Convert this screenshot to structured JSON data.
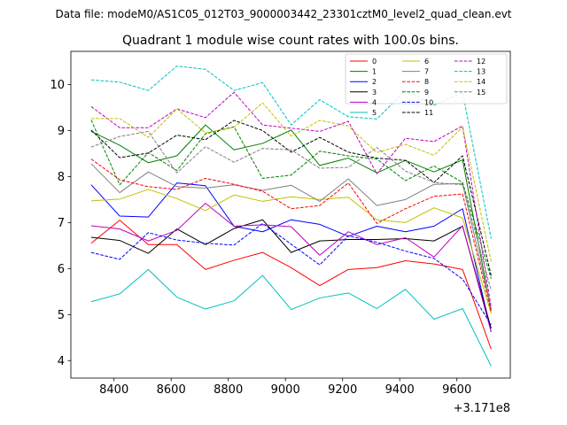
{
  "chart_data": {
    "type": "line",
    "suptitle": "Data file: modeM0/AS1C05_012T03_9000003442_23301cztM0_level2_quad_clean.evt",
    "title": "Quadrant 1 module wise count rates with 100.0s bins.",
    "xlabel": "",
    "ylabel": "",
    "x_offset_label": "+3.171e8",
    "x": [
      8320,
      8420,
      8520,
      8620,
      8720,
      8820,
      8920,
      9020,
      9120,
      9220,
      9320,
      9420,
      9520,
      9620,
      9720
    ],
    "xlim": [
      8249,
      9787
    ],
    "ylim": [
      3.62,
      10.72
    ],
    "x_ticks": [
      8400,
      8600,
      8800,
      9000,
      9200,
      9400,
      9600
    ],
    "y_ticks": [
      4,
      5,
      6,
      7,
      8,
      9,
      10
    ],
    "legend_location": "upper right",
    "series": [
      {
        "name": "0",
        "color": "#ff0000",
        "dash": "solid",
        "values": [
          6.55,
          7.05,
          6.52,
          6.52,
          5.98,
          6.18,
          6.35,
          6.02,
          5.63,
          5.98,
          6.02,
          6.17,
          6.1,
          5.98,
          4.25
        ]
      },
      {
        "name": "1",
        "color": "#008000",
        "dash": "solid",
        "values": [
          8.98,
          8.68,
          8.3,
          8.45,
          9.12,
          8.58,
          8.72,
          9.01,
          8.24,
          8.4,
          8.08,
          8.35,
          8.1,
          8.36,
          5.08
        ]
      },
      {
        "name": "2",
        "color": "#0000ff",
        "dash": "solid",
        "values": [
          7.82,
          7.14,
          7.12,
          7.86,
          7.8,
          6.92,
          6.8,
          7.06,
          6.96,
          6.7,
          6.92,
          6.8,
          6.92,
          7.3,
          4.62
        ]
      },
      {
        "name": "3",
        "color": "#000000",
        "dash": "solid",
        "values": [
          6.68,
          6.61,
          6.33,
          6.86,
          6.52,
          6.87,
          7.06,
          6.35,
          6.6,
          6.63,
          6.63,
          6.65,
          6.6,
          6.92,
          4.7
        ]
      },
      {
        "name": "4",
        "color": "#c000c0",
        "dash": "solid",
        "values": [
          6.93,
          6.86,
          6.6,
          6.83,
          7.42,
          6.92,
          6.95,
          6.91,
          6.29,
          6.8,
          6.52,
          6.67,
          6.25,
          6.93,
          4.62
        ]
      },
      {
        "name": "5",
        "color": "#00c0c0",
        "dash": "solid",
        "values": [
          5.28,
          5.45,
          5.98,
          5.38,
          5.12,
          5.3,
          5.85,
          5.11,
          5.36,
          5.47,
          5.13,
          5.55,
          4.9,
          5.13,
          3.88
        ]
      },
      {
        "name": "6",
        "color": "#c0c000",
        "dash": "solid",
        "values": [
          7.47,
          7.51,
          7.72,
          7.52,
          7.26,
          7.6,
          7.46,
          7.56,
          7.5,
          7.55,
          7.06,
          7.0,
          7.32,
          7.1,
          5.02
        ]
      },
      {
        "name": "7",
        "color": "#808080",
        "dash": "solid",
        "values": [
          8.28,
          7.65,
          8.1,
          7.78,
          7.75,
          7.82,
          7.7,
          7.81,
          7.46,
          7.95,
          7.37,
          7.5,
          7.83,
          7.85,
          5.12
        ]
      },
      {
        "name": "8",
        "color": "#ff0000",
        "dash": "dashed",
        "values": [
          8.38,
          7.93,
          7.78,
          7.72,
          7.96,
          7.83,
          7.68,
          7.3,
          7.37,
          7.86,
          6.98,
          7.3,
          7.57,
          7.62,
          5.05
        ]
      },
      {
        "name": "9",
        "color": "#008000",
        "dash": "dashed",
        "values": [
          9.23,
          7.82,
          8.52,
          8.13,
          8.93,
          9.08,
          7.96,
          8.03,
          8.55,
          8.45,
          8.38,
          7.91,
          8.23,
          7.87,
          5.78
        ]
      },
      {
        "name": "10",
        "color": "#0000ff",
        "dash": "dashed",
        "values": [
          6.35,
          6.2,
          6.78,
          6.62,
          6.55,
          6.51,
          6.98,
          6.53,
          6.08,
          6.71,
          6.57,
          6.38,
          6.22,
          5.77,
          4.78
        ]
      },
      {
        "name": "11",
        "color": "#000000",
        "dash": "dashed",
        "values": [
          9.01,
          8.41,
          8.51,
          8.9,
          8.8,
          9.22,
          9.0,
          8.53,
          8.85,
          8.53,
          8.4,
          8.35,
          7.87,
          8.45,
          5.85
        ]
      },
      {
        "name": "12",
        "color": "#c000c0",
        "dash": "dashed",
        "values": [
          9.52,
          9.06,
          9.06,
          9.47,
          9.28,
          9.83,
          9.12,
          9.05,
          8.98,
          9.2,
          8.06,
          8.83,
          8.76,
          9.1,
          5.15
        ]
      },
      {
        "name": "13",
        "color": "#00c0c0",
        "dash": "dashed",
        "values": [
          10.1,
          10.05,
          9.87,
          10.4,
          10.33,
          9.87,
          10.04,
          9.12,
          9.67,
          9.3,
          9.25,
          9.87,
          9.55,
          9.83,
          6.65
        ]
      },
      {
        "name": "14",
        "color": "#c0c000",
        "dash": "dashed",
        "values": [
          9.26,
          9.26,
          8.85,
          9.47,
          8.95,
          9.07,
          9.6,
          8.88,
          9.22,
          9.1,
          8.52,
          8.7,
          8.46,
          9.08,
          6.15
        ]
      },
      {
        "name": "15",
        "color": "#808080",
        "dash": "dashed",
        "values": [
          8.64,
          8.87,
          8.98,
          8.08,
          8.65,
          8.31,
          8.61,
          8.58,
          8.18,
          8.2,
          8.63,
          8.12,
          7.87,
          7.82,
          5.52
        ]
      }
    ]
  }
}
